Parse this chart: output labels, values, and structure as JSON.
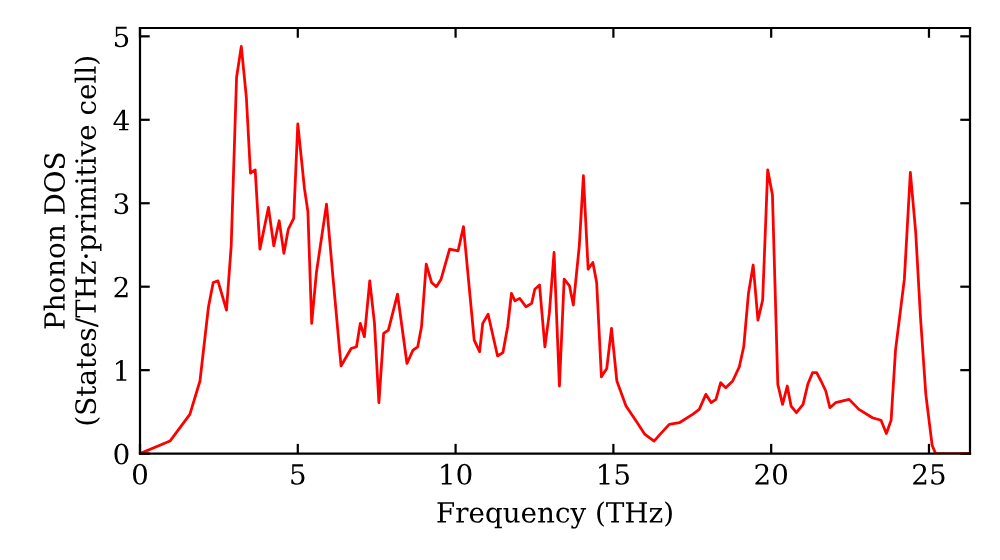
{
  "chart_data": {
    "type": "line",
    "xlabel": "Frequency (THz)",
    "ylabel": "Phonon DOS\n(States/THz·primitive cell)",
    "xlim": [
      0,
      26.3
    ],
    "ylim": [
      0,
      5.1
    ],
    "xticks": [
      0,
      5,
      10,
      15,
      20,
      25
    ],
    "yticks": [
      0,
      1,
      2,
      3,
      4,
      5
    ],
    "grid": false,
    "marker": "none",
    "line_style": "solid",
    "series": [
      {
        "color": "#ff0000",
        "x": [
          0,
          0.95,
          1.58,
          1.9,
          2.17,
          2.32,
          2.47,
          2.74,
          2.89,
          3.06,
          3.21,
          3.37,
          3.5,
          3.65,
          3.8,
          4.07,
          4.24,
          4.41,
          4.56,
          4.7,
          4.87,
          5.0,
          5.21,
          5.32,
          5.44,
          5.59,
          5.91,
          6.12,
          6.37,
          6.69,
          6.86,
          6.98,
          7.11,
          7.28,
          7.43,
          7.57,
          7.72,
          7.87,
          8.16,
          8.46,
          8.65,
          8.8,
          8.92,
          9.07,
          9.24,
          9.39,
          9.54,
          9.81,
          10.08,
          10.25,
          10.59,
          10.76,
          10.86,
          11.03,
          11.33,
          11.5,
          11.65,
          11.77,
          11.88,
          12.03,
          12.23,
          12.41,
          12.51,
          12.66,
          12.83,
          12.97,
          13.12,
          13.29,
          13.44,
          13.61,
          13.73,
          13.92,
          14.05,
          14.2,
          14.35,
          14.47,
          14.62,
          14.79,
          14.94,
          15.11,
          15.4,
          15.72,
          16.0,
          16.29,
          16.5,
          16.77,
          17.09,
          17.51,
          17.72,
          17.93,
          18.1,
          18.25,
          18.4,
          18.56,
          18.78,
          18.99,
          19.13,
          19.28,
          19.43,
          19.58,
          19.73,
          19.89,
          20.04,
          20.21,
          20.36,
          20.51,
          20.63,
          20.8,
          21.01,
          21.16,
          21.31,
          21.44,
          21.58,
          21.73,
          21.86,
          22.04,
          22.47,
          22.78,
          23.21,
          23.48,
          23.65,
          23.8,
          23.94,
          24.22,
          24.41,
          24.58,
          24.73,
          24.9,
          25.1,
          25.21,
          26.3
        ],
        "values": [
          0,
          0.15,
          0.47,
          0.87,
          1.76,
          2.05,
          2.07,
          1.72,
          2.49,
          4.51,
          4.88,
          4.27,
          3.36,
          3.4,
          2.45,
          2.95,
          2.49,
          2.79,
          2.4,
          2.69,
          2.82,
          3.95,
          3.18,
          2.9,
          1.56,
          2.17,
          2.99,
          2.09,
          1.05,
          1.26,
          1.28,
          1.56,
          1.4,
          2.07,
          1.56,
          0.61,
          1.44,
          1.48,
          1.91,
          1.08,
          1.24,
          1.28,
          1.52,
          2.27,
          2.05,
          2.0,
          2.09,
          2.45,
          2.43,
          2.72,
          1.36,
          1.22,
          1.56,
          1.67,
          1.17,
          1.21,
          1.52,
          1.92,
          1.83,
          1.86,
          1.76,
          1.8,
          1.97,
          2.02,
          1.28,
          1.68,
          2.41,
          0.81,
          2.09,
          2.01,
          1.78,
          2.49,
          3.33,
          2.21,
          2.29,
          2.05,
          0.92,
          1.02,
          1.5,
          0.87,
          0.57,
          0.39,
          0.23,
          0.15,
          0.24,
          0.35,
          0.37,
          0.47,
          0.53,
          0.71,
          0.61,
          0.65,
          0.85,
          0.79,
          0.87,
          1.04,
          1.28,
          1.92,
          2.26,
          1.6,
          1.84,
          3.4,
          3.1,
          0.83,
          0.59,
          0.81,
          0.57,
          0.49,
          0.59,
          0.83,
          0.97,
          0.97,
          0.87,
          0.75,
          0.55,
          0.61,
          0.65,
          0.53,
          0.43,
          0.4,
          0.24,
          0.4,
          1.24,
          2.09,
          3.37,
          2.65,
          1.64,
          0.71,
          0.1,
          0,
          0
        ]
      }
    ]
  }
}
